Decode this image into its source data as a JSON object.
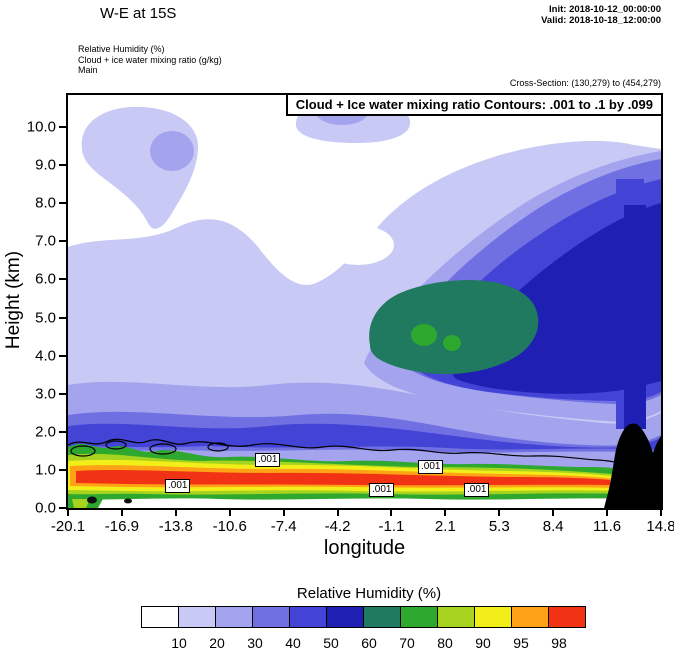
{
  "header": {
    "title": "W-E at 15S",
    "init": "Init: 2018-10-12_00:00:00",
    "valid": "Valid: 2018-10-18_12:00:00"
  },
  "subheader": {
    "line1": "Relative Humidity  (%)",
    "line2": "Cloud + ice water mixing ratio  (g/kg)",
    "line3": "Main",
    "cross_section": "Cross-Section: (130,279) to (454,279)"
  },
  "chart_data": {
    "type": "heatmap",
    "title": "Cloud + Ice water mixing ratio Contours: .001 to .1 by .099",
    "xlabel": "longitude",
    "ylabel": "Height (km)",
    "x_ticks": [
      "-20.1",
      "-16.9",
      "-13.8",
      "-10.6",
      "-7.4",
      "-4.2",
      "-1.1",
      "2.1",
      "5.3",
      "8.4",
      "11.6",
      "14.8"
    ],
    "y_ticks": [
      "0.0",
      "1.0",
      "2.0",
      "3.0",
      "4.0",
      "5.0",
      "6.0",
      "7.0",
      "8.0",
      "9.0",
      "10.0"
    ],
    "xlim": [
      -20.1,
      14.8
    ],
    "ylim": [
      0,
      10.8
    ],
    "fields": [
      {
        "name": "Relative Humidity (%)",
        "render": "filled contours"
      },
      {
        "name": "Cloud + Ice water mixing ratio (g/kg)",
        "render": "line contours",
        "levels": [
          0.001,
          0.1
        ],
        "step": 0.099
      }
    ],
    "legend": {
      "title": "Relative Humidity  (%)",
      "tick_labels": [
        "10",
        "20",
        "30",
        "40",
        "50",
        "60",
        "70",
        "80",
        "90",
        "95",
        "98"
      ],
      "colors": [
        "#ffffff",
        "#c9c9f5",
        "#a3a3ee",
        "#7070e2",
        "#4343d6",
        "#1f1fb4",
        "#1f7a60",
        "#2ea82e",
        "#a6d41e",
        "#f2ee1a",
        "#ffa216",
        "#f23214"
      ]
    },
    "contour_labels": [
      ".001",
      ".001",
      ".001",
      ".001",
      ".001"
    ],
    "terrain_color": "#000000",
    "description": "Vertical W-E cross-section at 15S: shaded relative humidity with saturated shallow layer (RH>98) near 0.3-1.2 km from -20 to 12E, elevated moist region (RH 60-80) near 3.5-6 km between -2E and 6E, and black terrain silhouette near 12-14.8E."
  }
}
